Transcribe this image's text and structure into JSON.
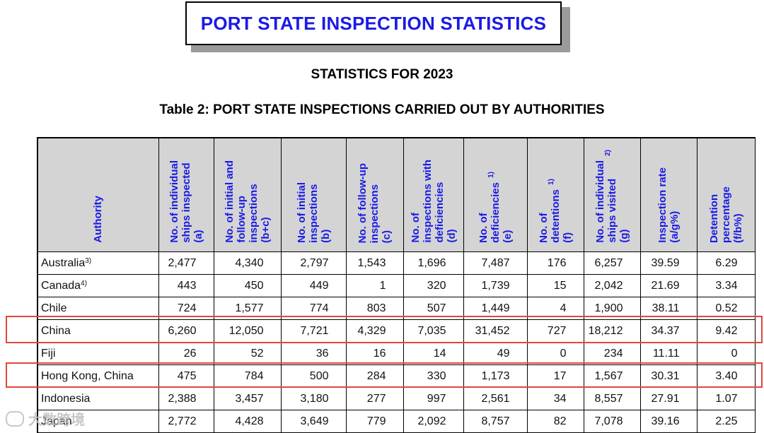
{
  "header": {
    "title": "PORT STATE INSPECTION STATISTICS",
    "subtitle": "STATISTICS FOR 2023",
    "table_title": "Table 2: PORT STATE INSPECTIONS CARRIED OUT BY AUTHORITIES"
  },
  "table": {
    "columns": [
      {
        "label": "Authority",
        "sup": ""
      },
      {
        "label": "No. of individual\nships inspected\n(a)",
        "sup": ""
      },
      {
        "label": "No. of initial and\nfollow-up\ninspections\n(b+c)",
        "sup": ""
      },
      {
        "label": "No. of initial\ninspections\n(b)",
        "sup": ""
      },
      {
        "label": "No. of follow-up\ninspections\n(c)",
        "sup": ""
      },
      {
        "label": "No. of\ninspections with\ndeficiencies\n(d)",
        "sup": ""
      },
      {
        "label": "No. of\ndeficiencies\n(e)",
        "sup": "1)"
      },
      {
        "label": "No. of\ndetentions\n(f)",
        "sup": "1)"
      },
      {
        "label": "No. of individual\nships visited\n(g)",
        "sup": "2)"
      },
      {
        "label": "Inspection rate\n(a/g%)",
        "sup": ""
      },
      {
        "label": "Detention\npercentage\n(f/b%)",
        "sup": ""
      }
    ],
    "rows": [
      {
        "authority": "Australia",
        "sup": "3)",
        "values": [
          "2,477",
          "4,340",
          "2,797",
          "1,543",
          "1,696",
          "7,487",
          "176",
          "6,257",
          "39.59",
          "6.29"
        ]
      },
      {
        "authority": "Canada",
        "sup": "4)",
        "values": [
          "443",
          "450",
          "449",
          "1",
          "320",
          "1,739",
          "15",
          "2,042",
          "21.69",
          "3.34"
        ]
      },
      {
        "authority": "Chile",
        "sup": "",
        "values": [
          "724",
          "1,577",
          "774",
          "803",
          "507",
          "1,449",
          "4",
          "1,900",
          "38.11",
          "0.52"
        ]
      },
      {
        "authority": "China",
        "sup": "",
        "values": [
          "6,260",
          "12,050",
          "7,721",
          "4,329",
          "7,035",
          "31,452",
          "727",
          "18,212",
          "34.37",
          "9.42"
        ]
      },
      {
        "authority": "Fiji",
        "sup": "",
        "values": [
          "26",
          "52",
          "36",
          "16",
          "14",
          "49",
          "0",
          "234",
          "11.11",
          "0"
        ]
      },
      {
        "authority": "Hong Kong, China",
        "sup": "",
        "values": [
          "475",
          "784",
          "500",
          "284",
          "330",
          "1,173",
          "17",
          "1,567",
          "30.31",
          "3.40"
        ]
      },
      {
        "authority": "Indonesia",
        "sup": "",
        "values": [
          "2,388",
          "3,457",
          "3,180",
          "277",
          "997",
          "2,561",
          "34",
          "8,557",
          "27.91",
          "1.07"
        ]
      },
      {
        "authority": "Japan",
        "sup": "",
        "values": [
          "2,772",
          "4,428",
          "3,649",
          "779",
          "2,092",
          "8,757",
          "82",
          "7,078",
          "39.16",
          "2.25"
        ]
      }
    ]
  },
  "highlights": {
    "color": "#e0463c",
    "rows": [
      "China",
      "Hong Kong, China"
    ]
  },
  "watermark": {
    "text": "大数跨境"
  }
}
